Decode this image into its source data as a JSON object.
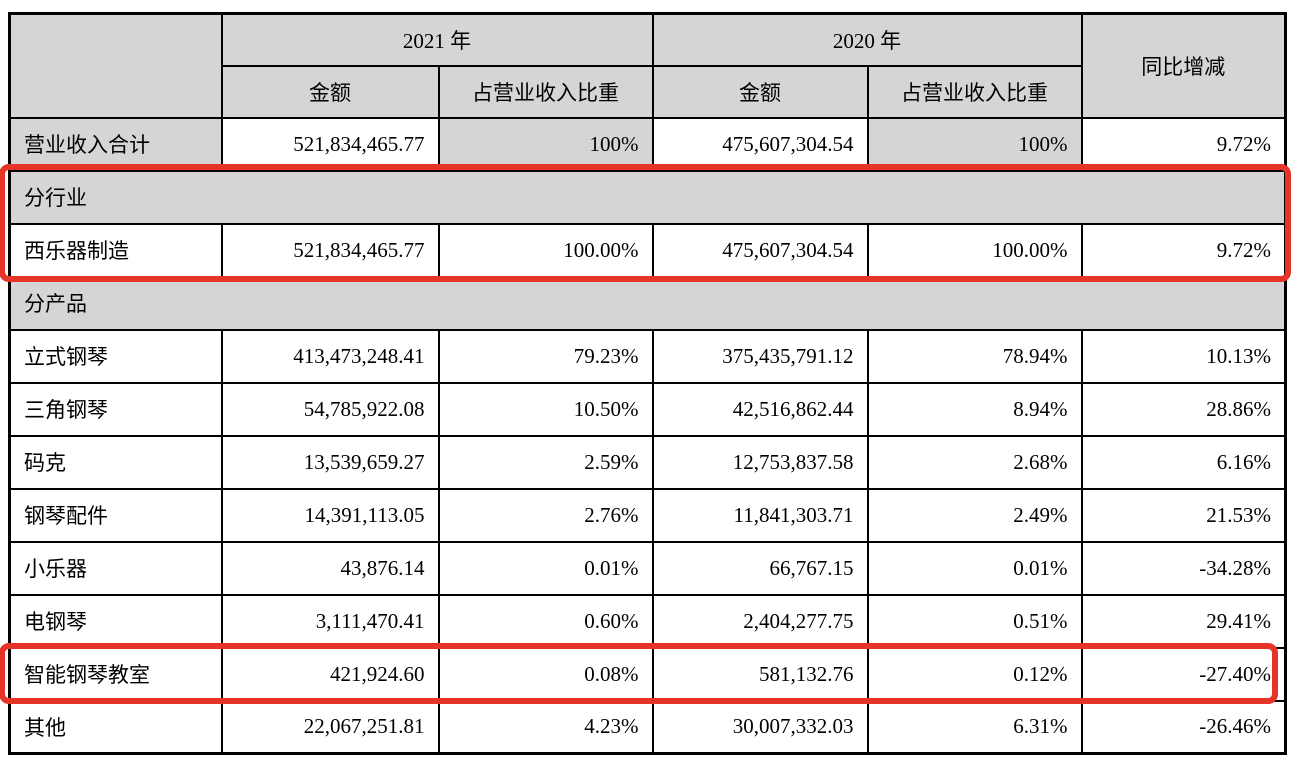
{
  "table": {
    "columns": {
      "group_2021": "2021 年",
      "group_2020": "2020 年",
      "yoy": "同比增减",
      "amount": "金额",
      "share": "占营业收入比重"
    },
    "rows": [
      {
        "label": "营业收入合计",
        "amount_2021": "521,834,465.77",
        "share_2021": "100%",
        "amount_2020": "475,607,304.54",
        "share_2020": "100%",
        "yoy": "9.72%"
      },
      {
        "label": "分行业"
      },
      {
        "label": "西乐器制造",
        "amount_2021": "521,834,465.77",
        "share_2021": "100.00%",
        "amount_2020": "475,607,304.54",
        "share_2020": "100.00%",
        "yoy": "9.72%"
      },
      {
        "label": "分产品"
      },
      {
        "label": "立式钢琴",
        "amount_2021": "413,473,248.41",
        "share_2021": "79.23%",
        "amount_2020": "375,435,791.12",
        "share_2020": "78.94%",
        "yoy": "10.13%"
      },
      {
        "label": "三角钢琴",
        "amount_2021": "54,785,922.08",
        "share_2021": "10.50%",
        "amount_2020": "42,516,862.44",
        "share_2020": "8.94%",
        "yoy": "28.86%"
      },
      {
        "label": "码克",
        "amount_2021": "13,539,659.27",
        "share_2021": "2.59%",
        "amount_2020": "12,753,837.58",
        "share_2020": "2.68%",
        "yoy": "6.16%"
      },
      {
        "label": "钢琴配件",
        "amount_2021": "14,391,113.05",
        "share_2021": "2.76%",
        "amount_2020": "11,841,303.71",
        "share_2020": "2.49%",
        "yoy": "21.53%"
      },
      {
        "label": "小乐器",
        "amount_2021": "43,876.14",
        "share_2021": "0.01%",
        "amount_2020": "66,767.15",
        "share_2020": "0.01%",
        "yoy": "-34.28%"
      },
      {
        "label": "电钢琴",
        "amount_2021": "3,111,470.41",
        "share_2021": "0.60%",
        "amount_2020": "2,404,277.75",
        "share_2020": "0.51%",
        "yoy": "29.41%"
      },
      {
        "label": "智能钢琴教室",
        "amount_2021": "421,924.60",
        "share_2021": "0.08%",
        "amount_2020": "581,132.76",
        "share_2020": "0.12%",
        "yoy": "-27.40%"
      },
      {
        "label": "其他",
        "amount_2021": "22,067,251.81",
        "share_2021": "4.23%",
        "amount_2020": "30,007,332.03",
        "share_2020": "6.31%",
        "yoy": "-26.46%"
      }
    ],
    "colors": {
      "header_fill": "#d5d5d5",
      "border": "#000000",
      "highlight": "#e63428"
    }
  }
}
